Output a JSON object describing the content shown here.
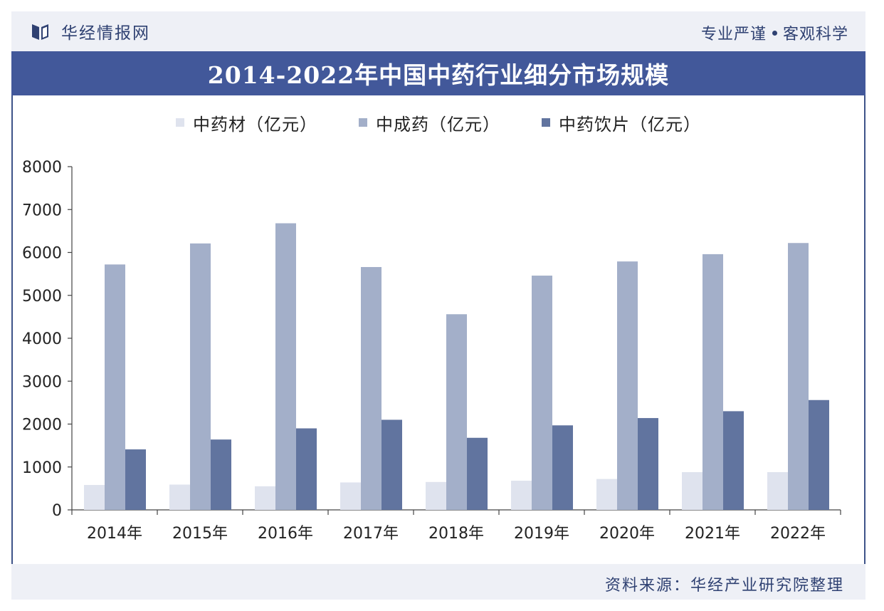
{
  "header": {
    "brand_name": "华经情报网",
    "slogan_left": "专业严谨",
    "slogan_right": "客观科学",
    "logo_icon": "book-logo-icon"
  },
  "title": "2014-2022年中国中药行业细分市场规模",
  "source": "资料来源：华经产业研究院整理",
  "colors": {
    "brand": "#42589a",
    "band_bg": "#eef0f6",
    "series_1": "#dfe3ee",
    "series_2": "#a3afc9",
    "series_3": "#61749f"
  },
  "chart_data": {
    "type": "bar",
    "categories": [
      "2014年",
      "2015年",
      "2016年",
      "2017年",
      "2018年",
      "2019年",
      "2020年",
      "2021年",
      "2022年"
    ],
    "series": [
      {
        "name": "中药材（亿元）",
        "color": "#dfe3ee",
        "values": [
          580,
          590,
          550,
          640,
          650,
          680,
          720,
          880,
          880
        ]
      },
      {
        "name": "中成药（亿元）",
        "color": "#a3afc9",
        "values": [
          5720,
          6210,
          6680,
          5660,
          4560,
          5460,
          5790,
          5960,
          6220
        ]
      },
      {
        "name": "中药饮片（亿元）",
        "color": "#61749f",
        "values": [
          1410,
          1640,
          1900,
          2100,
          1680,
          1970,
          2140,
          2300,
          2560
        ]
      }
    ],
    "ylim": [
      0,
      8000
    ],
    "yticks": [
      "0",
      "1000",
      "2000",
      "3000",
      "4000",
      "5000",
      "6000",
      "7000",
      "8000"
    ],
    "xlabel": "",
    "ylabel": "",
    "grid": false,
    "legend_position": "top"
  }
}
